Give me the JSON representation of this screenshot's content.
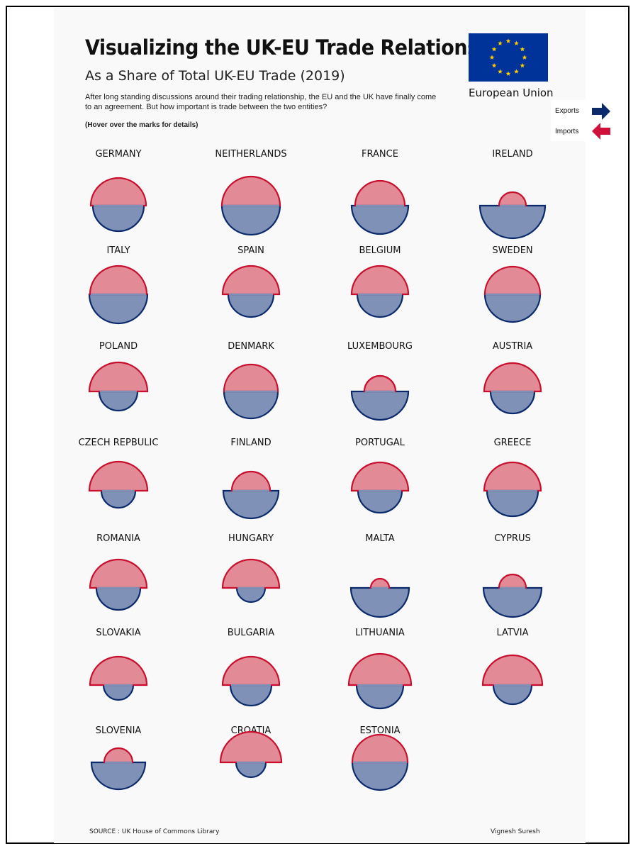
{
  "header": {
    "title": "Visualizing the UK-EU Trade Relationship",
    "subtitle": "As a Share of Total UK-EU Trade (2019)",
    "description": "After long standing discussions around their trading relationship, the EU and the UK have finally come to an agreement. But how important is trade between the two entities?",
    "hint": "(Hover over the marks for details)"
  },
  "flag": {
    "label": "European Union",
    "background": "#003399",
    "star_color": "#ffcc00",
    "icon": "eu-flag-icon"
  },
  "legend": {
    "exports_label": "Exports",
    "imports_label": "Imports",
    "exports_color": "#0b2a6b",
    "imports_color": "#d0103a",
    "exports_icon": "arrow-right-icon",
    "imports_icon": "arrow-left-icon"
  },
  "footer": {
    "source": "SOURCE : UK House of Commons Library",
    "author": "Vignesh Suresh"
  },
  "chart_data": {
    "type": "semicircle-pairs",
    "encoding": "Upper semicircle (red) = Imports share; lower semicircle (blue) = Exports share; values read as relative radii.",
    "colors": {
      "imports_fill": "#e38a97",
      "imports_stroke": "#c8102e",
      "exports_fill": "#8091b7",
      "exports_stroke": "#0b2a6b"
    },
    "countries": [
      {
        "name": "GERMANY",
        "imports": 39,
        "exports": 36
      },
      {
        "name": "NEITHERLANDS",
        "imports": 41,
        "exports": 41
      },
      {
        "name": "FRANCE",
        "imports": 35,
        "exports": 40
      },
      {
        "name": "IRELAND",
        "imports": 19,
        "exports": 46
      },
      {
        "name": "ITALY",
        "imports": 40,
        "exports": 41
      },
      {
        "name": "SPAIN",
        "imports": 40,
        "exports": 32
      },
      {
        "name": "BELGIUM",
        "imports": 40,
        "exports": 32
      },
      {
        "name": "SWEDEN",
        "imports": 39,
        "exports": 39
      },
      {
        "name": "POLAND",
        "imports": 41,
        "exports": 27
      },
      {
        "name": "DENMARK",
        "imports": 38,
        "exports": 38
      },
      {
        "name": "LUXEMBOURG",
        "imports": 22,
        "exports": 40
      },
      {
        "name": "AUSTRIA",
        "imports": 40,
        "exports": 31
      },
      {
        "name": "CZECH REPBULIC",
        "imports": 41,
        "exports": 24
      },
      {
        "name": "FINLAND",
        "imports": 27,
        "exports": 39
      },
      {
        "name": "PORTUGAL",
        "imports": 40,
        "exports": 31
      },
      {
        "name": "GREECE",
        "imports": 40,
        "exports": 36
      },
      {
        "name": "ROMANIA",
        "imports": 40,
        "exports": 31
      },
      {
        "name": "HUNGARY",
        "imports": 40,
        "exports": 20
      },
      {
        "name": "MALTA",
        "imports": 13,
        "exports": 41
      },
      {
        "name": "CYPRUS",
        "imports": 19,
        "exports": 41
      },
      {
        "name": "SLOVAKIA",
        "imports": 40,
        "exports": 21
      },
      {
        "name": "BULGARIA",
        "imports": 40,
        "exports": 29
      },
      {
        "name": "LITHUANIA",
        "imports": 44,
        "exports": 33
      },
      {
        "name": "LATVIA",
        "imports": 42,
        "exports": 27
      },
      {
        "name": "SLOVENIA",
        "imports": 20,
        "exports": 38
      },
      {
        "name": "CROATIA",
        "imports": 43,
        "exports": 21
      },
      {
        "name": "ESTONIA",
        "imports": 39,
        "exports": 39
      }
    ]
  }
}
